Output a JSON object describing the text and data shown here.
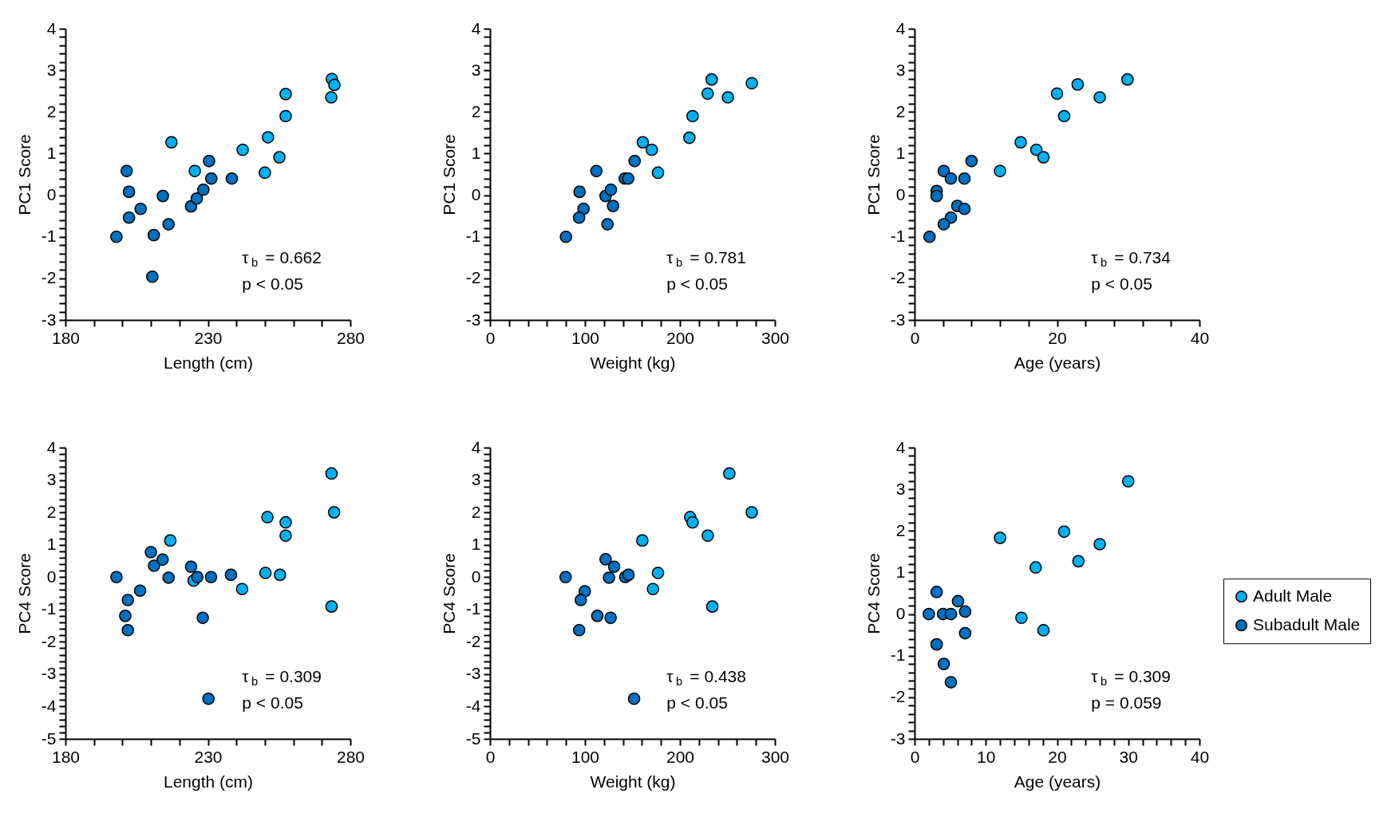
{
  "chart_data": [
    {
      "type": "scatter",
      "xlabel": "Length (cm)",
      "ylabel": "PC1 Score",
      "marker": "circle",
      "xlim": [
        180,
        280
      ],
      "ylim": [
        -3,
        4
      ],
      "xticks": [
        180,
        {
          "value": 190,
          "label": null
        },
        {
          "value": 200,
          "label": null
        },
        {
          "value": 210,
          "label": null
        },
        {
          "value": 220,
          "label": null
        },
        230,
        {
          "value": 240,
          "label": null
        },
        {
          "value": 250,
          "label": null
        },
        {
          "value": 260,
          "label": null
        },
        {
          "value": 270,
          "label": null
        },
        280
      ],
      "yticks": [
        -3,
        {
          "value": -2.8,
          "label": null
        },
        {
          "value": -2.6,
          "label": null
        },
        {
          "value": -2.4,
          "label": null
        },
        {
          "value": -2.2,
          "label": null
        },
        -2,
        {
          "value": -1.8,
          "label": null
        },
        {
          "value": -1.6,
          "label": null
        },
        {
          "value": -1.4,
          "label": null
        },
        {
          "value": -1.2,
          "label": null
        },
        -1,
        {
          "value": -0.8,
          "label": null
        },
        {
          "value": -0.6,
          "label": null
        },
        {
          "value": -0.4,
          "label": null
        },
        {
          "value": -0.2,
          "label": null
        },
        0,
        {
          "value": 0.2,
          "label": null
        },
        {
          "value": 0.4,
          "label": null
        },
        {
          "value": 0.6,
          "label": null
        },
        {
          "value": 0.8,
          "label": null
        },
        1,
        {
          "value": 1.2,
          "label": null
        },
        {
          "value": 1.4,
          "label": null
        },
        {
          "value": 1.6,
          "label": null
        },
        {
          "value": 1.8,
          "label": null
        },
        2,
        {
          "value": 2.2,
          "label": null
        },
        {
          "value": 2.4,
          "label": null
        },
        {
          "value": 2.6,
          "label": null
        },
        {
          "value": 2.8,
          "label": null
        },
        3,
        {
          "value": 3.2,
          "label": null
        },
        {
          "value": 3.4,
          "label": null
        },
        {
          "value": 3.6,
          "label": null
        },
        {
          "value": 3.8,
          "label": null
        },
        4
      ],
      "series": [
        {
          "color": "#00b0f0",
          "x": [
            273.5,
            274.4,
            273.3,
            257.3,
            257.3,
            251.1,
            255.1,
            250,
            242.2,
            225.4,
            217.2
          ],
          "values": [
            2.79,
            2.65,
            2.35,
            2.43,
            1.9,
            1.39,
            0.91,
            0.54,
            1.09,
            0.58,
            1.27
          ]
        },
        {
          "color": "#0070c0",
          "x": [
            201.5,
            202.3,
            202.3,
            206.4,
            197.9,
            211,
            210.5,
            214.2,
            216.2,
            224.1,
            226.1,
            228.4,
            230.4,
            231.2,
            238.4
          ],
          "values": [
            0.58,
            0.08,
            -0.54,
            -0.33,
            -1.0,
            -0.96,
            -1.96,
            -0.02,
            -0.7,
            -0.27,
            -0.08,
            0.13,
            0.82,
            0.4,
            0.4
          ]
        }
      ],
      "annotations": [
        "τ$_{b}$ = 0.662",
        "p < 0.05"
      ]
    },
    {
      "type": "scatter",
      "xlabel": "Weight (kg)",
      "ylabel": "PC1 Score",
      "marker": "circle",
      "xlim": [
        0,
        300
      ],
      "ylim": [
        -3,
        4
      ],
      "xticks": [
        0,
        {
          "value": 20,
          "label": null
        },
        {
          "value": 40,
          "label": null
        },
        {
          "value": 60,
          "label": null
        },
        {
          "value": 80,
          "label": null
        },
        100,
        {
          "value": 120,
          "label": null
        },
        {
          "value": 140,
          "label": null
        },
        {
          "value": 160,
          "label": null
        },
        {
          "value": 180,
          "label": null
        },
        200,
        {
          "value": 220,
          "label": null
        },
        {
          "value": 240,
          "label": null
        },
        {
          "value": 260,
          "label": null
        },
        {
          "value": 280,
          "label": null
        },
        300
      ],
      "yticks": [
        -3,
        {
          "value": -2.8,
          "label": null
        },
        {
          "value": -2.6,
          "label": null
        },
        {
          "value": -2.4,
          "label": null
        },
        {
          "value": -2.2,
          "label": null
        },
        -2,
        {
          "value": -1.8,
          "label": null
        },
        {
          "value": -1.6,
          "label": null
        },
        {
          "value": -1.4,
          "label": null
        },
        {
          "value": -1.2,
          "label": null
        },
        -1,
        {
          "value": -0.8,
          "label": null
        },
        {
          "value": -0.6,
          "label": null
        },
        {
          "value": -0.4,
          "label": null
        },
        {
          "value": -0.2,
          "label": null
        },
        0,
        {
          "value": 0.2,
          "label": null
        },
        {
          "value": 0.4,
          "label": null
        },
        {
          "value": 0.6,
          "label": null
        },
        {
          "value": 0.8,
          "label": null
        },
        1,
        {
          "value": 1.2,
          "label": null
        },
        {
          "value": 1.4,
          "label": null
        },
        {
          "value": 1.6,
          "label": null
        },
        {
          "value": 1.8,
          "label": null
        },
        2,
        {
          "value": 2.2,
          "label": null
        },
        {
          "value": 2.4,
          "label": null
        },
        {
          "value": 2.6,
          "label": null
        },
        {
          "value": 2.8,
          "label": null
        },
        3,
        {
          "value": 3.2,
          "label": null
        },
        {
          "value": 3.4,
          "label": null
        },
        {
          "value": 3.6,
          "label": null
        },
        {
          "value": 3.8,
          "label": null
        },
        4
      ],
      "series": [
        {
          "color": "#00b0f0",
          "x": [
            233.4,
            229.2,
            250.5,
            275.7,
            213.3,
            209.9,
            160.9,
            170.4,
            176.9
          ],
          "values": [
            2.78,
            2.44,
            2.35,
            2.69,
            1.9,
            1.38,
            1.27,
            1.09,
            0.54
          ]
        },
        {
          "color": "#0070c0",
          "x": [
            112,
            94.3,
            98.5,
            93.8,
            80,
            123.7,
            121.7,
            127.3,
            129.6,
            141.9,
            145.5,
            152.3
          ],
          "values": [
            0.58,
            0.08,
            -0.33,
            -0.54,
            -1.0,
            -0.7,
            -0.02,
            0.13,
            -0.26,
            0.4,
            0.4,
            0.82
          ]
        }
      ],
      "annotations": [
        "τ$_{b}$ = 0.781",
        "p < 0.05"
      ]
    },
    {
      "type": "scatter",
      "xlabel": "Age (years)",
      "ylabel": "PC1 Score",
      "marker": "circle",
      "xlim": [
        0,
        40
      ],
      "ylim": [
        -3,
        4
      ],
      "xticks": [
        0,
        {
          "value": 4,
          "label": null
        },
        {
          "value": 8,
          "label": null
        },
        {
          "value": 12,
          "label": null
        },
        {
          "value": 16,
          "label": null
        },
        20,
        {
          "value": 24,
          "label": null
        },
        {
          "value": 28,
          "label": null
        },
        {
          "value": 32,
          "label": null
        },
        {
          "value": 36,
          "label": null
        },
        40
      ],
      "yticks": [
        -3,
        {
          "value": -2.8,
          "label": null
        },
        {
          "value": -2.6,
          "label": null
        },
        {
          "value": -2.4,
          "label": null
        },
        {
          "value": -2.2,
          "label": null
        },
        -2,
        {
          "value": -1.8,
          "label": null
        },
        {
          "value": -1.6,
          "label": null
        },
        {
          "value": -1.4,
          "label": null
        },
        {
          "value": -1.2,
          "label": null
        },
        -1,
        {
          "value": -0.8,
          "label": null
        },
        {
          "value": -0.6,
          "label": null
        },
        {
          "value": -0.4,
          "label": null
        },
        {
          "value": -0.2,
          "label": null
        },
        0,
        {
          "value": 0.2,
          "label": null
        },
        {
          "value": 0.4,
          "label": null
        },
        {
          "value": 0.6,
          "label": null
        },
        {
          "value": 0.8,
          "label": null
        },
        1,
        {
          "value": 1.2,
          "label": null
        },
        {
          "value": 1.4,
          "label": null
        },
        {
          "value": 1.6,
          "label": null
        },
        {
          "value": 1.8,
          "label": null
        },
        2,
        {
          "value": 2.2,
          "label": null
        },
        {
          "value": 2.4,
          "label": null
        },
        {
          "value": 2.6,
          "label": null
        },
        {
          "value": 2.8,
          "label": null
        },
        3,
        {
          "value": 3.2,
          "label": null
        },
        {
          "value": 3.4,
          "label": null
        },
        {
          "value": 3.6,
          "label": null
        },
        {
          "value": 3.8,
          "label": null
        },
        4
      ],
      "series": [
        {
          "color": "#00b0f0",
          "x": [
            29.9,
            22.9,
            20.0,
            26.0,
            21.0,
            14.9,
            17.1,
            18.1,
            12.0
          ],
          "values": [
            2.78,
            2.66,
            2.44,
            2.35,
            1.9,
            1.27,
            1.09,
            0.91,
            0.58
          ]
        },
        {
          "color": "#0070c0",
          "x": [
            4.1,
            5.1,
            7.0,
            8.0,
            3.1,
            3.1,
            6.0,
            7.0,
            5.1,
            4.1,
            2.1
          ],
          "values": [
            0.58,
            0.4,
            0.4,
            0.82,
            0.1,
            -0.02,
            -0.26,
            -0.33,
            -0.54,
            -0.7,
            -1.0
          ]
        }
      ],
      "annotations": [
        "τ$_{b}$ = 0.734",
        "p < 0.05"
      ]
    },
    {
      "type": "scatter",
      "xlabel": "Length (cm)",
      "ylabel": "PC4 Score",
      "marker": "circle",
      "xlim": [
        180,
        280
      ],
      "ylim": [
        -5,
        4
      ],
      "xticks": [
        180,
        {
          "value": 190,
          "label": null
        },
        {
          "value": 200,
          "label": null
        },
        {
          "value": 210,
          "label": null
        },
        {
          "value": 220,
          "label": null
        },
        230,
        {
          "value": 240,
          "label": null
        },
        {
          "value": 250,
          "label": null
        },
        {
          "value": 260,
          "label": null
        },
        {
          "value": 270,
          "label": null
        },
        280
      ],
      "yticks": [
        -5,
        {
          "value": -4.8,
          "label": null
        },
        {
          "value": -4.6,
          "label": null
        },
        {
          "value": -4.4,
          "label": null
        },
        {
          "value": -4.2,
          "label": null
        },
        -4,
        {
          "value": -3.8,
          "label": null
        },
        {
          "value": -3.6,
          "label": null
        },
        {
          "value": -3.4,
          "label": null
        },
        {
          "value": -3.2,
          "label": null
        },
        -3,
        {
          "value": -2.8,
          "label": null
        },
        {
          "value": -2.6,
          "label": null
        },
        {
          "value": -2.4,
          "label": null
        },
        {
          "value": -2.2,
          "label": null
        },
        -2,
        {
          "value": -1.8,
          "label": null
        },
        {
          "value": -1.6,
          "label": null
        },
        {
          "value": -1.4,
          "label": null
        },
        {
          "value": -1.2,
          "label": null
        },
        -1,
        {
          "value": -0.8,
          "label": null
        },
        {
          "value": -0.6,
          "label": null
        },
        {
          "value": -0.4,
          "label": null
        },
        {
          "value": -0.2,
          "label": null
        },
        0,
        {
          "value": 0.2,
          "label": null
        },
        {
          "value": 0.4,
          "label": null
        },
        {
          "value": 0.6,
          "label": null
        },
        {
          "value": 0.8,
          "label": null
        },
        1,
        {
          "value": 1.2,
          "label": null
        },
        {
          "value": 1.4,
          "label": null
        },
        {
          "value": 1.6,
          "label": null
        },
        {
          "value": 1.8,
          "label": null
        },
        2,
        {
          "value": 2.2,
          "label": null
        },
        {
          "value": 2.4,
          "label": null
        },
        {
          "value": 2.6,
          "label": null
        },
        {
          "value": 2.8,
          "label": null
        },
        3,
        {
          "value": 3.2,
          "label": null
        },
        {
          "value": 3.4,
          "label": null
        },
        {
          "value": 3.6,
          "label": null
        },
        {
          "value": 3.8,
          "label": null
        },
        4
      ],
      "series": [
        {
          "color": "#00b0f0",
          "x": [
            273.4,
            274.3,
            273.4,
            250.9,
            257.3,
            257.3,
            250.2,
            255.3,
            242.0,
            216.8,
            225.0
          ],
          "values": [
            3.2,
            2.0,
            -0.91,
            1.85,
            1.69,
            1.28,
            0.13,
            0.07,
            -0.37,
            1.13,
            -0.11
          ]
        },
        {
          "color": "#0070c0",
          "x": [
            197.9,
            201.9,
            201.0,
            201.9,
            206.2,
            210.0,
            211.1,
            214.1,
            216.2,
            224.1,
            226.3,
            228.2,
            231.1,
            230.2,
            238.1
          ],
          "values": [
            0.0,
            -0.71,
            -1.2,
            -1.64,
            -0.42,
            0.77,
            0.35,
            0.54,
            -0.02,
            0.32,
            0.0,
            -1.26,
            0.0,
            -3.76,
            0.07
          ]
        }
      ],
      "annotations": [
        "τ$_{b}$ = 0.309",
        "p < 0.05"
      ]
    },
    {
      "type": "scatter",
      "xlabel": "Weight (kg)",
      "ylabel": "PC4 Score",
      "marker": "circle",
      "xlim": [
        0,
        300
      ],
      "ylim": [
        -5,
        4
      ],
      "xticks": [
        0,
        {
          "value": 20,
          "label": null
        },
        {
          "value": 40,
          "label": null
        },
        {
          "value": 60,
          "label": null
        },
        {
          "value": 80,
          "label": null
        },
        100,
        {
          "value": 120,
          "label": null
        },
        {
          "value": 140,
          "label": null
        },
        {
          "value": 160,
          "label": null
        },
        {
          "value": 180,
          "label": null
        },
        200,
        {
          "value": 220,
          "label": null
        },
        {
          "value": 240,
          "label": null
        },
        {
          "value": 260,
          "label": null
        },
        {
          "value": 280,
          "label": null
        },
        300
      ],
      "yticks": [
        -5,
        {
          "value": -4.8,
          "label": null
        },
        {
          "value": -4.6,
          "label": null
        },
        {
          "value": -4.4,
          "label": null
        },
        {
          "value": -4.2,
          "label": null
        },
        -4,
        {
          "value": -3.8,
          "label": null
        },
        {
          "value": -3.6,
          "label": null
        },
        {
          "value": -3.4,
          "label": null
        },
        {
          "value": -3.2,
          "label": null
        },
        -3,
        {
          "value": -2.8,
          "label": null
        },
        {
          "value": -2.6,
          "label": null
        },
        {
          "value": -2.4,
          "label": null
        },
        {
          "value": -2.2,
          "label": null
        },
        -2,
        {
          "value": -1.8,
          "label": null
        },
        {
          "value": -1.6,
          "label": null
        },
        {
          "value": -1.4,
          "label": null
        },
        {
          "value": -1.2,
          "label": null
        },
        -1,
        {
          "value": -0.8,
          "label": null
        },
        {
          "value": -0.6,
          "label": null
        },
        {
          "value": -0.4,
          "label": null
        },
        {
          "value": -0.2,
          "label": null
        },
        0,
        {
          "value": 0.2,
          "label": null
        },
        {
          "value": 0.4,
          "label": null
        },
        {
          "value": 0.6,
          "label": null
        },
        {
          "value": 0.8,
          "label": null
        },
        1,
        {
          "value": 1.2,
          "label": null
        },
        {
          "value": 1.4,
          "label": null
        },
        {
          "value": 1.6,
          "label": null
        },
        {
          "value": 1.8,
          "label": null
        },
        2,
        {
          "value": 2.2,
          "label": null
        },
        {
          "value": 2.4,
          "label": null
        },
        {
          "value": 2.6,
          "label": null
        },
        {
          "value": 2.8,
          "label": null
        },
        3,
        {
          "value": 3.2,
          "label": null
        },
        {
          "value": 3.4,
          "label": null
        },
        {
          "value": 3.6,
          "label": null
        },
        {
          "value": 3.8,
          "label": null
        },
        4
      ],
      "series": [
        {
          "color": "#00b0f0",
          "x": [
            252.0,
            275.6,
            234.1,
            210.8,
            213.3,
            229.3,
            160.4,
            176.9,
            171.6
          ],
          "values": [
            3.2,
            2.0,
            -0.91,
            1.85,
            1.69,
            1.28,
            1.13,
            0.13,
            -0.37
          ]
        },
        {
          "color": "#0070c0",
          "x": [
            79.6,
            99.8,
            95.6,
            93.9,
            113,
            127,
            121.7,
            130.7,
            125.3,
            142.4,
            145.8,
            151.7
          ],
          "values": [
            0.0,
            -0.44,
            -0.71,
            -1.64,
            -1.2,
            -1.26,
            0.55,
            0.32,
            -0.02,
            0.0,
            0.07,
            -3.76
          ]
        }
      ],
      "annotations": [
        "τ$_{b}$ = 0.438",
        "p < 0.05"
      ]
    },
    {
      "type": "scatter",
      "xlabel": "Age (years)",
      "ylabel": "PC4 Score",
      "marker": "circle",
      "xlim": [
        0,
        40
      ],
      "ylim": [
        -3,
        4
      ],
      "legend": "right",
      "xticks": [
        0,
        {
          "value": 2,
          "label": null
        },
        {
          "value": 4,
          "label": null
        },
        {
          "value": 6,
          "label": null
        },
        {
          "value": 8,
          "label": null
        },
        10,
        {
          "value": 12,
          "label": null
        },
        {
          "value": 14,
          "label": null
        },
        {
          "value": 16,
          "label": null
        },
        {
          "value": 18,
          "label": null
        },
        20,
        {
          "value": 22,
          "label": null
        },
        {
          "value": 24,
          "label": null
        },
        {
          "value": 26,
          "label": null
        },
        {
          "value": 28,
          "label": null
        },
        30,
        {
          "value": 32,
          "label": null
        },
        {
          "value": 34,
          "label": null
        },
        {
          "value": 36,
          "label": null
        },
        {
          "value": 38,
          "label": null
        },
        40
      ],
      "yticks": [
        -3,
        {
          "value": -2.8,
          "label": null
        },
        {
          "value": -2.6,
          "label": null
        },
        {
          "value": -2.4,
          "label": null
        },
        {
          "value": -2.2,
          "label": null
        },
        -2,
        {
          "value": -1.8,
          "label": null
        },
        {
          "value": -1.6,
          "label": null
        },
        {
          "value": -1.4,
          "label": null
        },
        {
          "value": -1.2,
          "label": null
        },
        -1,
        {
          "value": -0.8,
          "label": null
        },
        {
          "value": -0.6,
          "label": null
        },
        {
          "value": -0.4,
          "label": null
        },
        {
          "value": -0.2,
          "label": null
        },
        0,
        {
          "value": 0.2,
          "label": null
        },
        {
          "value": 0.4,
          "label": null
        },
        {
          "value": 0.6,
          "label": null
        },
        {
          "value": 0.8,
          "label": null
        },
        1,
        {
          "value": 1.2,
          "label": null
        },
        {
          "value": 1.4,
          "label": null
        },
        {
          "value": 1.6,
          "label": null
        },
        {
          "value": 1.8,
          "label": null
        },
        2,
        {
          "value": 2.2,
          "label": null
        },
        {
          "value": 2.4,
          "label": null
        },
        {
          "value": 2.6,
          "label": null
        },
        {
          "value": 2.8,
          "label": null
        },
        3,
        {
          "value": 3.2,
          "label": null
        },
        {
          "value": 3.4,
          "label": null
        },
        {
          "value": 3.6,
          "label": null
        },
        {
          "value": 3.8,
          "label": null
        },
        4
      ],
      "series": [
        {
          "name": "Adult Male",
          "color": "#00b0f0",
          "x": [
            30.0,
            12.0,
            21.0,
            26.0,
            23.0,
            17.0,
            15.0,
            18.1
          ],
          "values": [
            3.19,
            1.83,
            1.98,
            1.68,
            1.27,
            1.12,
            -0.09,
            -0.39
          ]
        },
        {
          "name": "Subadult Male",
          "color": "#0070c0",
          "x": [
            2.0,
            3.1,
            4.0,
            5.1,
            6.1,
            7.1,
            7.1,
            3.1,
            4.1,
            5.1
          ],
          "values": [
            0.0,
            0.53,
            0.0,
            0.0,
            0.31,
            0.06,
            -0.46,
            -0.73,
            -1.2,
            -1.64
          ]
        }
      ],
      "annotations": [
        "τ$_{b}$ = 0.309",
        "p = 0.059"
      ]
    }
  ]
}
